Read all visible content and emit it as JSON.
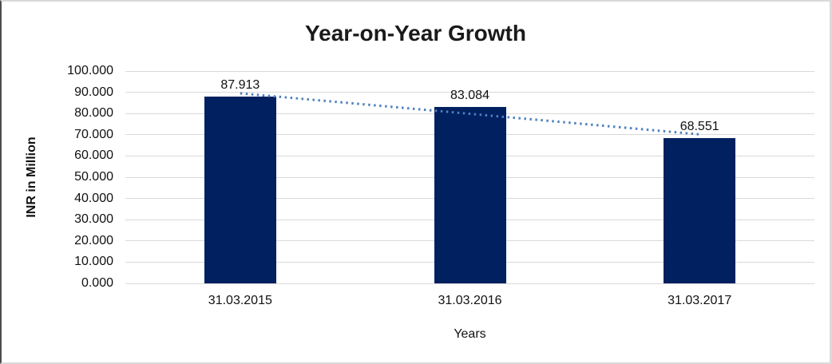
{
  "chart_data": {
    "type": "bar",
    "title": "Year-on-Year Growth",
    "categories": [
      "31.03.2015",
      "31.03.2016",
      "31.03.2017"
    ],
    "values": [
      87.913,
      83.084,
      68.551
    ],
    "data_labels": [
      "87.913",
      "83.084",
      "68.551"
    ],
    "xlabel": "Years",
    "ylabel": "INR in Million",
    "ylim": [
      0,
      100
    ],
    "ytick_labels": [
      "100.000",
      "90.000",
      "80.000",
      "70.000",
      "60.000",
      "50.000",
      "40.000",
      "30.000",
      "20.000",
      "10.000",
      "0.000"
    ],
    "grid": true,
    "legend": false,
    "trendline": "linear-dotted",
    "colors": {
      "bar": "#002060",
      "trendline": "#4f81bd",
      "gridline": "#d9d9d9",
      "text": "#111111",
      "title_text": "#1a1a1a"
    }
  }
}
